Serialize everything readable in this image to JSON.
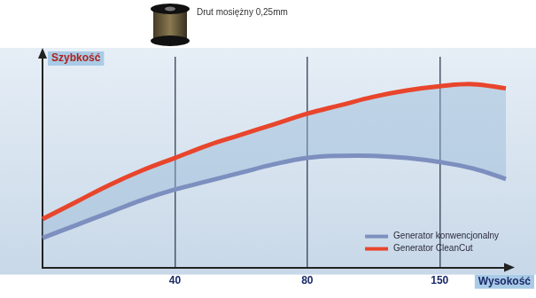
{
  "chart_data": {
    "type": "line",
    "x_label": "Wysokość",
    "y_label": "Szybkość",
    "annotations": [
      "Drut mosiężny 0,25mm"
    ],
    "categories": [
      null,
      null,
      null,
      null,
      "40",
      null,
      null,
      null,
      "80",
      null,
      null,
      null,
      "150",
      null,
      null
    ],
    "series": [
      {
        "name": "Generator konwencjonalny",
        "color": "#7d8fbf",
        "values": [
          14,
          20,
          26,
          32,
          37,
          41,
          45,
          49,
          52,
          53,
          53,
          52,
          50,
          47,
          42
        ]
      },
      {
        "name": "Generator CleanCut",
        "color": "#e8452c",
        "values": [
          23,
          31,
          39,
          46,
          52,
          58,
          63,
          68,
          73,
          77,
          81,
          84,
          86,
          87,
          85
        ]
      }
    ],
    "ylim": [
      0,
      100
    ],
    "grid": true,
    "legend": "bottom-right",
    "tick_labels": "x"
  }
}
